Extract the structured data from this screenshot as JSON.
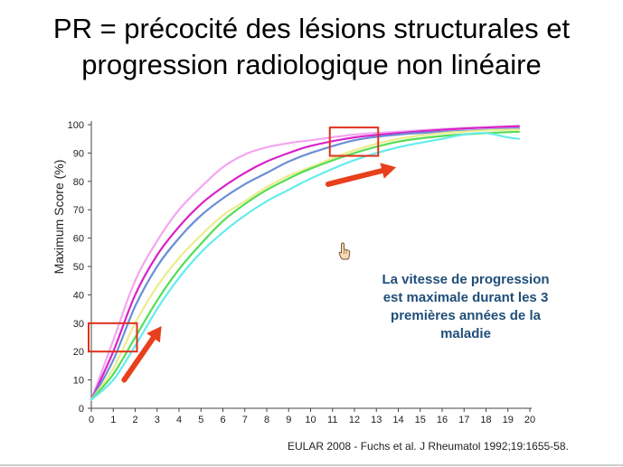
{
  "slide": {
    "title_line1": "PR = précocité des lésions structurales et",
    "title_line2": "progression radiologique non linéaire",
    "annotation_lines": [
      "La vitesse de progression",
      "est maximale durant les 3",
      "premières années de la",
      "maladie"
    ],
    "citation": "EULAR 2008  - Fuchs et al. J Rheumatol 1992;19:1655-58.",
    "cursor_icon": "hand-pointer-icon"
  },
  "colors": {
    "highlight_box": "#e0301e",
    "arrow": "#e8401c",
    "annotation_text": "#1f4e79",
    "axis": "#444444"
  },
  "chart_data": {
    "type": "line",
    "ylabel": "Maximum Score (%)",
    "xlabel": "",
    "xlim": [
      0,
      20
    ],
    "ylim": [
      0,
      100
    ],
    "x_ticks": [
      0,
      1,
      2,
      3,
      4,
      5,
      6,
      7,
      8,
      9,
      10,
      11,
      12,
      13,
      14,
      15,
      16,
      17,
      18,
      19,
      20
    ],
    "y_ticks": [
      0,
      10,
      20,
      30,
      40,
      50,
      60,
      70,
      80,
      90,
      100
    ],
    "grid": false,
    "legend": "none",
    "series": [
      {
        "color": "#f4a6f0",
        "x": [
          0,
          1,
          2,
          3,
          4,
          5,
          6,
          7,
          8,
          9,
          10,
          12,
          14,
          16,
          18,
          19.5
        ],
        "y": [
          3,
          24,
          45,
          59,
          70,
          78,
          85,
          89.5,
          92,
          93.5,
          94.5,
          96.5,
          97.5,
          98.5,
          99,
          99.2
        ]
      },
      {
        "color": "#d822c8",
        "x": [
          0,
          1,
          2,
          3,
          4,
          5,
          6,
          7,
          8,
          9,
          10,
          12,
          14,
          16,
          18,
          19.5
        ],
        "y": [
          3,
          20,
          40,
          54,
          64,
          72,
          78,
          83,
          87,
          90,
          92.5,
          95.5,
          97,
          98.2,
          99,
          99.5
        ]
      },
      {
        "color": "#6a8fd6",
        "x": [
          0,
          1,
          2,
          3,
          4,
          5,
          6,
          7,
          8,
          9,
          10,
          12,
          14,
          16,
          18,
          19.5
        ],
        "y": [
          3,
          17,
          36,
          50,
          60,
          68,
          74,
          79,
          83,
          87,
          90,
          94.5,
          96.5,
          97.5,
          98.2,
          98.7
        ]
      },
      {
        "color": "#ecec8c",
        "x": [
          0,
          1,
          2,
          3,
          4,
          5,
          6,
          7,
          8,
          9,
          10,
          12,
          14,
          16,
          18,
          19.5
        ],
        "y": [
          3,
          14,
          30,
          43,
          53,
          61,
          68,
          73,
          78,
          82,
          85,
          91,
          95,
          97,
          98,
          98.3
        ]
      },
      {
        "color": "#55dd55",
        "x": [
          0,
          1,
          2,
          3,
          4,
          5,
          6,
          7,
          8,
          9,
          10,
          12,
          14,
          16,
          18,
          19.5
        ],
        "y": [
          3,
          12,
          25,
          38,
          49,
          58,
          66,
          72,
          77,
          81,
          84.5,
          90,
          94,
          96,
          97,
          97.5
        ]
      },
      {
        "color": "#66ecec",
        "x": [
          0,
          1,
          2,
          3,
          4,
          5,
          6,
          7,
          8,
          9,
          10,
          12,
          14,
          16,
          17,
          18,
          19,
          19.5
        ],
        "y": [
          3,
          10,
          22,
          35,
          46,
          55,
          62,
          68,
          73,
          77,
          81,
          87.5,
          92,
          95,
          96.5,
          97,
          95.5,
          95
        ]
      }
    ],
    "highlight_boxes": [
      {
        "x": [
          0,
          2
        ],
        "y": [
          20,
          30
        ]
      },
      {
        "x": [
          11,
          13
        ],
        "y": [
          89,
          99
        ]
      }
    ],
    "arrows": [
      {
        "from": [
          1.5,
          10
        ],
        "to": [
          3.2,
          29
        ]
      },
      {
        "from": [
          10.8,
          79
        ],
        "to": [
          13.9,
          85
        ]
      }
    ]
  }
}
